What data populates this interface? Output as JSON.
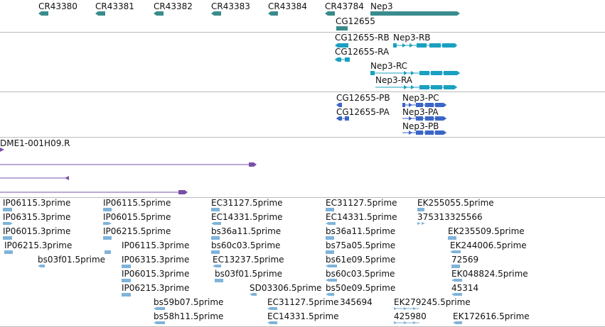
{
  "colors": {
    "track1": "#3a8c8c",
    "track2": "#1aa0c0",
    "track3": "#3b66c8",
    "track4": "#7a4fa8",
    "track5": "#7fb3da",
    "separator": "#bcbcbc"
  },
  "track1": {
    "features": [
      {
        "name": "CR43380"
      },
      {
        "name": "CR43381"
      },
      {
        "name": "CR43382"
      },
      {
        "name": "CR43383"
      },
      {
        "name": "CR43384"
      },
      {
        "name": "CR43784"
      },
      {
        "name": "Nep3"
      },
      {
        "name": "CG12655"
      }
    ]
  },
  "track2": {
    "features": [
      {
        "name": "CG12655-RB"
      },
      {
        "name": "Nep3-RB"
      },
      {
        "name": "CG12655-RA"
      },
      {
        "name": "Nep3-RC"
      },
      {
        "name": "Nep3-RA"
      }
    ]
  },
  "track3": {
    "features": [
      {
        "name": "CG12655-PB"
      },
      {
        "name": "Nep3-PC"
      },
      {
        "name": "CG12655-PA"
      },
      {
        "name": "Nep3-PA"
      },
      {
        "name": "Nep3-PB"
      }
    ]
  },
  "track4": {
    "features": [
      {
        "name": "DME1-001H09.R"
      }
    ]
  },
  "track5": {
    "features": [
      {
        "name": "IP06115.3prime"
      },
      {
        "name": "IP06315.3prime"
      },
      {
        "name": "IP06015.3prime"
      },
      {
        "name": "IP06215.3prime"
      },
      {
        "name": "bs03f01.5prime"
      },
      {
        "name": "IP06115.5prime"
      },
      {
        "name": "IP06015.5prime"
      },
      {
        "name": "IP06215.5prime"
      },
      {
        "name": "IP06115.3prime"
      },
      {
        "name": "IP06315.3prime"
      },
      {
        "name": "IP06015.3prime"
      },
      {
        "name": "IP06215.3prime"
      },
      {
        "name": "bs59b07.5prime"
      },
      {
        "name": "bs58h11.5prime"
      },
      {
        "name": "EC31127.5prime"
      },
      {
        "name": "EC14331.5prime"
      },
      {
        "name": "bs36a11.5prime"
      },
      {
        "name": "bs60c03.5prime"
      },
      {
        "name": "EC13237.5prime"
      },
      {
        "name": "bs03f01.5prime"
      },
      {
        "name": "SD03306.5prime"
      },
      {
        "name": "EC31127.5prime"
      },
      {
        "name": "EC14331.5prime"
      },
      {
        "name": "EC31127.5prime"
      },
      {
        "name": "EC14331.5prime"
      },
      {
        "name": "bs36a11.5prime"
      },
      {
        "name": "bs75a05.5prime"
      },
      {
        "name": "bs61e09.5prime"
      },
      {
        "name": "bs60c03.5prime"
      },
      {
        "name": "bs50e09.5prime"
      },
      {
        "name": "345694"
      },
      {
        "name": "EK255055.5prime"
      },
      {
        "name": "375313325566"
      },
      {
        "name": "EK235509.5prime"
      },
      {
        "name": "EK244006.5prime"
      },
      {
        "name": "72569"
      },
      {
        "name": "EK048824.5prime"
      },
      {
        "name": "45314"
      },
      {
        "name": "EK279245.5prime"
      },
      {
        "name": "425980"
      },
      {
        "name": "EK172616.5prime"
      }
    ]
  }
}
